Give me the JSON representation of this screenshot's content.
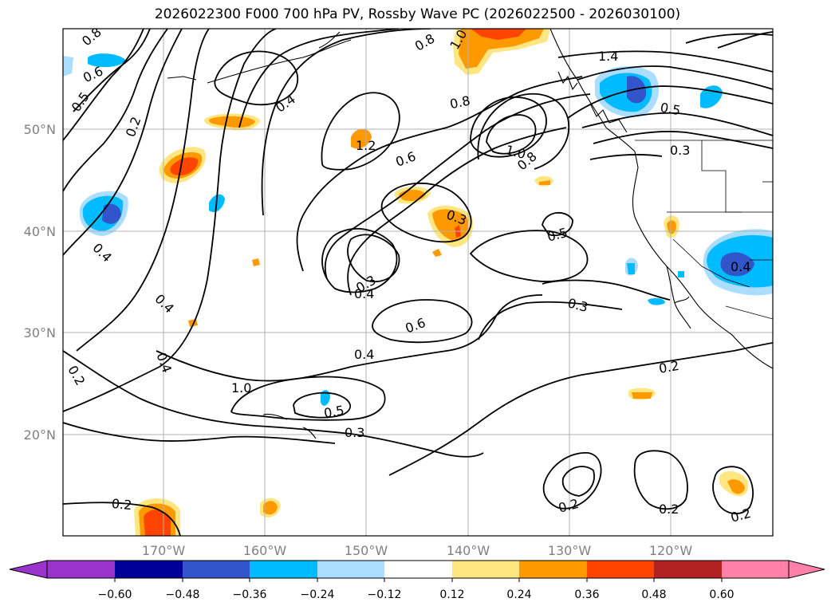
{
  "title": "2026022300 F000 700 hPa PV, Rossby Wave PC (2026022500 - 2026030100)",
  "axes": {
    "lat_labels": [
      "50°N",
      "40°N",
      "30°N",
      "20°N"
    ],
    "lon_labels": [
      "170°W",
      "160°W",
      "150°W",
      "140°W",
      "130°W",
      "120°W"
    ]
  },
  "contour_labels": [
    "0.8",
    "0.6",
    "0.5",
    "0.2",
    "0.4",
    "0.8",
    "1.0",
    "1.4",
    "0.8",
    "1.2",
    "0.6",
    "1.0",
    "0.8",
    "0.5",
    "0.3",
    "0.3",
    "0.5",
    "0.3",
    "0.4",
    "0.6",
    "0.4",
    "0.3",
    "0.4",
    "0.4",
    "0.2",
    "0.4",
    "0.5",
    "0.3",
    "0.2",
    "0.2",
    "0.2",
    "0.2",
    "0.2",
    "0.4",
    "1.0"
  ],
  "colorbar": {
    "ticks": [
      "−0.60",
      "−0.48",
      "−0.36",
      "−0.24",
      "−0.12",
      "0.12",
      "0.24",
      "0.36",
      "0.48",
      "0.60"
    ],
    "colors": {
      "under": "#9933cc",
      "bins": [
        "#000099",
        "#3355cc",
        "#00bbff",
        "#aaddff",
        "#ffffff",
        "#ffe680",
        "#ff9900",
        "#ff4400",
        "#b22222"
      ],
      "over": "#ff80a8",
      "first": "#9933cc"
    }
  }
}
